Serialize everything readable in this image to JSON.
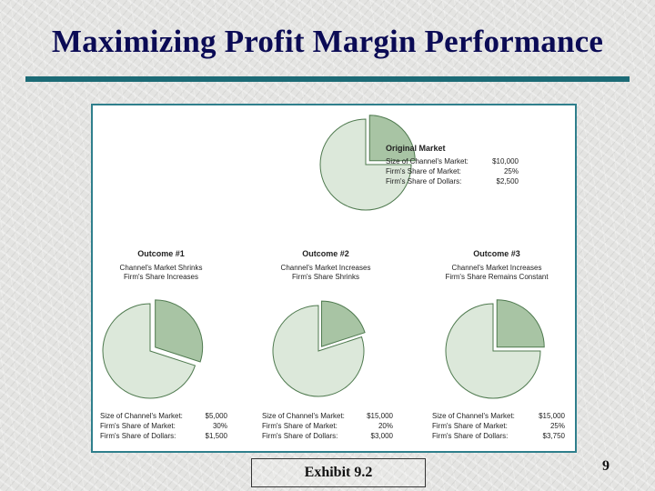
{
  "slide": {
    "title": "Maximizing Profit Margin Performance",
    "caption": "Exhibit 9.2",
    "page_number": "9"
  },
  "colors": {
    "title_text": "#0b0b55",
    "rule": "#1c6b76",
    "frame_border": "#2f7f8c",
    "pie_fill": "#dce8da",
    "slice_fill": "#a8c4a4",
    "pie_stroke": "#4f7a4f"
  },
  "chart_data": [
    {
      "type": "pie",
      "id": "original",
      "title": "Original Market",
      "subtitle_lines": [],
      "firm_share_pct": 25,
      "relative_size": 1.0,
      "stats": [
        {
          "label": "Size of Channel's Market:",
          "value": "$10,000"
        },
        {
          "label": "Firm's Share of Market:",
          "value": "25%"
        },
        {
          "label": "Firm's Share of Dollars:",
          "value": "$2,500"
        }
      ]
    },
    {
      "type": "pie",
      "id": "outcome1",
      "title": "Outcome #1",
      "subtitle_lines": [
        "Channel's Market Shrinks",
        "Firm's Share Increases"
      ],
      "firm_share_pct": 30,
      "relative_size": 1.0,
      "stats": [
        {
          "label": "Size of Channel's Market:",
          "value": "$5,000"
        },
        {
          "label": "Firm's Share of Market:",
          "value": "30%"
        },
        {
          "label": "Firm's Share of Dollars:",
          "value": "$1,500"
        }
      ]
    },
    {
      "type": "pie",
      "id": "outcome2",
      "title": "Outcome #2",
      "subtitle_lines": [
        "Channel's Market Increases",
        "Firm's Share Shrinks"
      ],
      "firm_share_pct": 20,
      "relative_size": 1.0,
      "stats": [
        {
          "label": "Size of Channel's Market:",
          "value": "$15,000"
        },
        {
          "label": "Firm's Share of Market:",
          "value": "20%"
        },
        {
          "label": "Firm's Share of Dollars:",
          "value": "$3,000"
        }
      ]
    },
    {
      "type": "pie",
      "id": "outcome3",
      "title": "Outcome #3",
      "subtitle_lines": [
        "Channel's Market Increases",
        "Firm's Share Remains Constant"
      ],
      "firm_share_pct": 25,
      "relative_size": 1.0,
      "stats": [
        {
          "label": "Size of Channel's Market:",
          "value": "$15,000"
        },
        {
          "label": "Firm's Share of Market:",
          "value": "25%"
        },
        {
          "label": "Firm's Share of Dollars:",
          "value": "$3,750"
        }
      ]
    }
  ]
}
